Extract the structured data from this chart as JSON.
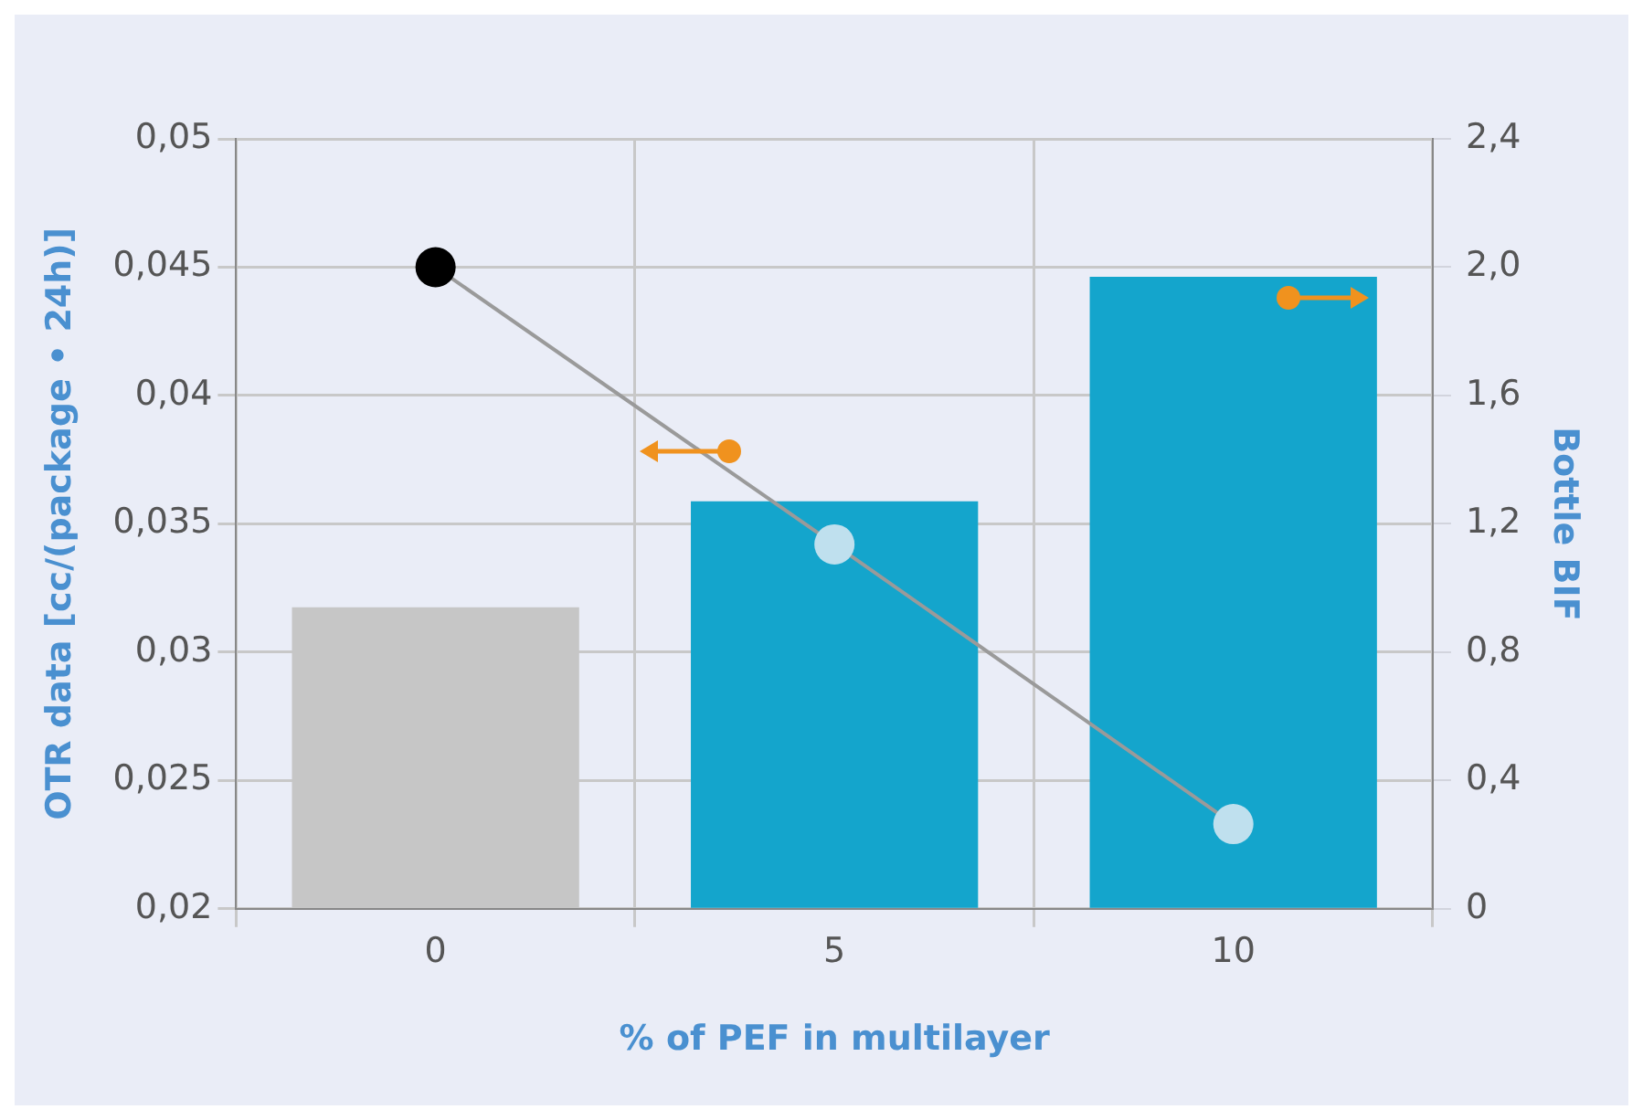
{
  "chart_data": {
    "type": "bar",
    "xlabel": "% of PEF in multilayer",
    "ylabel": "OTR data [cc/(package • 24h)]",
    "y2label": "Bottle BIF",
    "categories": [
      "0",
      "5",
      "10"
    ],
    "series": [
      {
        "type": "line",
        "axis": "y",
        "color": "#9a9a9a",
        "colors": [
          "#000000",
          "#bfe0ee",
          "#bfe0ee"
        ],
        "values": [
          0.045,
          0.0342,
          0.0233
        ]
      },
      {
        "axis": "y2",
        "colors": [
          "#c6c6c6",
          "#14a5cc",
          "#14a5cc"
        ],
        "values": [
          0.94,
          1.27,
          1.97
        ]
      }
    ],
    "ylim": [
      0.02,
      0.05
    ],
    "yticks": [
      {
        "value": 0.02,
        "label": "0,02"
      },
      {
        "value": 0.025,
        "label": "0,025"
      },
      {
        "value": 0.03,
        "label": "0,03"
      },
      {
        "value": 0.035,
        "label": "0,035"
      },
      {
        "value": 0.04,
        "label": "0,04"
      },
      {
        "value": 0.045,
        "label": "0,045"
      },
      {
        "value": 0.05,
        "label": "0,05"
      }
    ],
    "y2lim": [
      0,
      2.4
    ],
    "y2ticks": [
      0,
      {
        "value": 0.4,
        "label": "0,4"
      },
      {
        "value": 0.8,
        "label": "0,8"
      },
      {
        "value": 1.2,
        "label": "1,2"
      },
      {
        "value": 1.6,
        "label": "1,6"
      },
      {
        "value": 2,
        "label": "2,0"
      },
      {
        "value": 2.4,
        "label": "2,4"
      }
    ],
    "grid": true,
    "legend": false,
    "marker": "circle"
  }
}
